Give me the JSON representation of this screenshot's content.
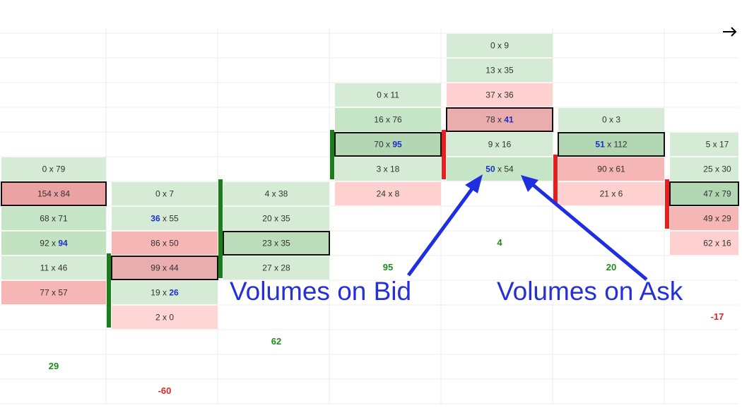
{
  "footprint": {
    "separator": "x",
    "columns": [
      {
        "cells": [
          {
            "bid": 0,
            "ask": 79,
            "color": "#d5ebd5"
          },
          {
            "bid": 154,
            "ask": 84,
            "color": "#eaa2a2",
            "boxed": true
          },
          {
            "bid": 68,
            "ask": 71,
            "color": "#c6e4c6"
          },
          {
            "bid": 92,
            "ask": 94,
            "color": "#c2e2c2",
            "highlight": "ask"
          },
          {
            "bid": 11,
            "ask": 46,
            "color": "#d5ebd5"
          },
          {
            "bid": 77,
            "ask": 57,
            "color": "#f7b6b6"
          }
        ],
        "delta": 29
      },
      {
        "cells": [
          {
            "bid": 0,
            "ask": 7,
            "color": "#d5ebd5"
          },
          {
            "bid": 36,
            "ask": 55,
            "color": "#d5ebd5",
            "highlight": "bid"
          },
          {
            "bid": 86,
            "ask": 50,
            "color": "#f7b6b6"
          },
          {
            "bid": 99,
            "ask": 44,
            "color": "#e9adad",
            "boxed": true
          },
          {
            "bid": 19,
            "ask": 26,
            "color": "#d5ebd5",
            "highlight": "ask"
          },
          {
            "bid": 2,
            "ask": 0,
            "color": "#ffd6d6"
          }
        ],
        "delta": -60,
        "bar_color": "#1a7f1a"
      },
      {
        "cells": [
          {
            "bid": 4,
            "ask": 38,
            "color": "#d5ebd5"
          },
          {
            "bid": 20,
            "ask": 35,
            "color": "#d5ebd5"
          },
          {
            "bid": 23,
            "ask": 35,
            "color": "#bcdcbc",
            "boxed": true
          },
          {
            "bid": 27,
            "ask": 28,
            "color": "#d5ebd5"
          }
        ],
        "delta": 62,
        "bar_color": "#1a7f1a"
      },
      {
        "cells": [
          {
            "bid": 0,
            "ask": 11,
            "color": "#d5ebd5"
          },
          {
            "bid": 16,
            "ask": 76,
            "color": "#c6e4c6"
          },
          {
            "bid": 70,
            "ask": 95,
            "color": "#b3d6b3",
            "boxed": true,
            "highlight": "ask"
          },
          {
            "bid": 3,
            "ask": 18,
            "color": "#d5ebd5"
          },
          {
            "bid": 24,
            "ask": 8,
            "color": "#ffd0d0"
          }
        ],
        "delta": 95,
        "bar_color": "#1a7f1a"
      },
      {
        "cells": [
          {
            "bid": 0,
            "ask": 9,
            "color": "#d5ebd5"
          },
          {
            "bid": 13,
            "ask": 35,
            "color": "#d5ebd5"
          },
          {
            "bid": 37,
            "ask": 36,
            "color": "#ffd0d0"
          },
          {
            "bid": 78,
            "ask": 41,
            "color": "#e9adad",
            "boxed": true,
            "highlight": "ask"
          },
          {
            "bid": 9,
            "ask": 16,
            "color": "#d5ebd5"
          },
          {
            "bid": 50,
            "ask": 54,
            "color": "#c6e4c6",
            "highlight": "bid"
          }
        ],
        "delta": 4,
        "bar_color": "#ee1c1c"
      },
      {
        "cells": [
          {
            "bid": 0,
            "ask": 3,
            "color": "#d5ebd5"
          },
          {
            "bid": 51,
            "ask": 112,
            "color": "#b3d6b3",
            "boxed": true,
            "highlight": "bid"
          },
          {
            "bid": 90,
            "ask": 61,
            "color": "#f7b6b6"
          },
          {
            "bid": 21,
            "ask": 6,
            "color": "#ffd0d0"
          }
        ],
        "delta": 20,
        "bar_color": "#ee1c1c"
      },
      {
        "cells": [
          {
            "bid": 5,
            "ask": 17,
            "color": "#d5ebd5"
          },
          {
            "bid": 25,
            "ask": 30,
            "color": "#d5ebd5"
          },
          {
            "bid": 47,
            "ask": 79,
            "color": "#b3d6b3",
            "boxed": true
          },
          {
            "bid": 49,
            "ask": 29,
            "color": "#f7b6b6"
          },
          {
            "bid": 62,
            "ask": 16,
            "color": "#ffd0d0"
          }
        ],
        "delta": -17,
        "bar_color": "#ee1c1c"
      }
    ],
    "annotations": [
      "Volumes on Bid",
      "Volumes on Ask"
    ]
  }
}
